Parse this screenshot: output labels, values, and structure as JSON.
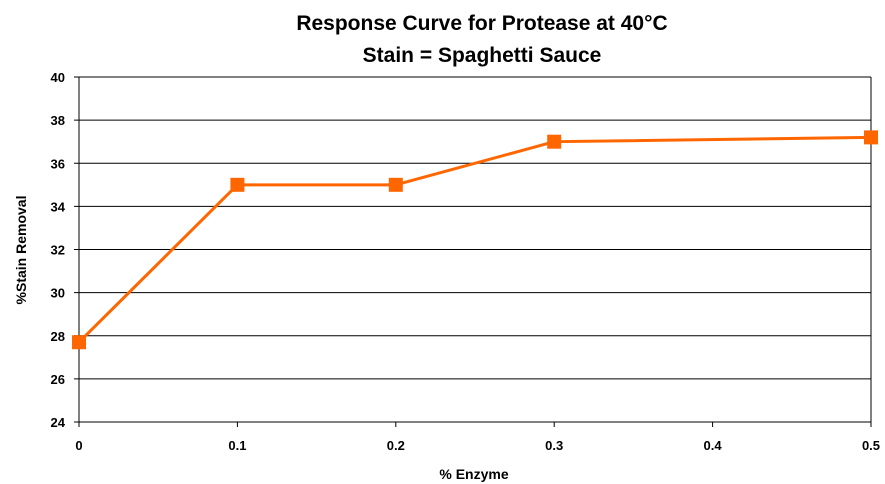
{
  "chart_data": {
    "type": "line",
    "title": "Response Curve for Protease at 40°C",
    "subtitle": "Stain = Spaghetti Sauce",
    "xlabel": "% Enzyme",
    "ylabel": "%Stain Removal",
    "xlim": [
      0,
      0.5
    ],
    "ylim": [
      24,
      40
    ],
    "x_ticks": [
      "0",
      "0.1",
      "0.2",
      "0.3",
      "0.4",
      "0.5"
    ],
    "y_ticks": [
      "24",
      "26",
      "28",
      "30",
      "32",
      "34",
      "36",
      "38",
      "40"
    ],
    "grid": "horizontal",
    "legend": "none",
    "series": [
      {
        "color": "#ff6600",
        "marker": "square",
        "x": [
          0,
          0.1,
          0.2,
          0.3,
          0.5
        ],
        "y": [
          27.7,
          35.0,
          35.0,
          37.0,
          37.2
        ]
      }
    ]
  }
}
